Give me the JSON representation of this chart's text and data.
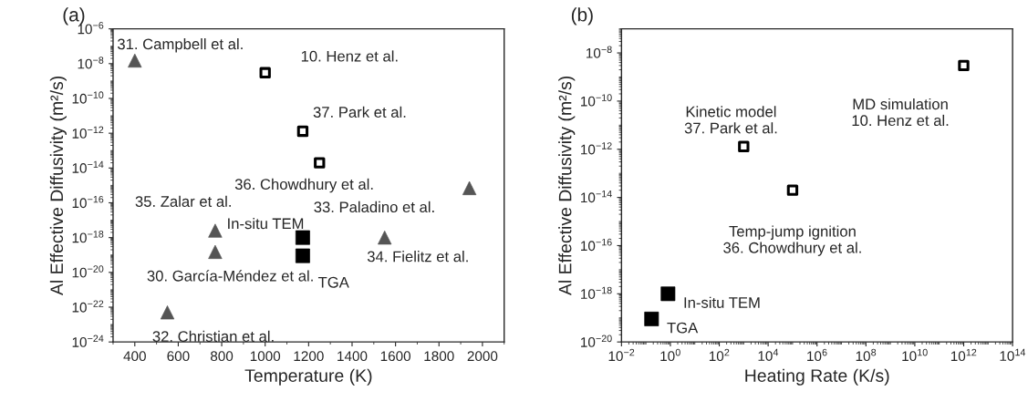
{
  "chart_data": [
    {
      "type": "scatter",
      "title": "(a)",
      "xlabel": "Temperature (K)",
      "ylabel": "Al Effective Diffusivity (m²/s)",
      "log": "y",
      "grid": false,
      "legend": false,
      "xlim": [
        300,
        2100
      ],
      "xticks": [
        400,
        600,
        800,
        1000,
        1200,
        1400,
        1600,
        1800,
        2000
      ],
      "ylim": [
        1e-24,
        1e-06
      ],
      "yticks": [
        {
          "value": 1e-24,
          "label": "10$^{−24}$"
        },
        {
          "value": 1e-22,
          "label": "10$^{−22}$"
        },
        {
          "value": 1e-20,
          "label": "10$^{−20}$"
        },
        {
          "value": 1e-18,
          "label": "10$^{−18}$"
        },
        {
          "value": 1e-16,
          "label": "10$^{−16}$"
        },
        {
          "value": 1e-14,
          "label": "10$^{−14}$"
        },
        {
          "value": 1e-12,
          "label": "10$^{−12}$"
        },
        {
          "value": 1e-10,
          "label": "10$^{−10}$"
        },
        {
          "value": 1e-08,
          "label": "10$^{−8}$"
        },
        {
          "value": 1e-06,
          "label": "10$^{−6}$"
        }
      ],
      "series": [
        {
          "color": "#555555",
          "marker": "triangle",
          "x": [
            400,
            550,
            770,
            770,
            1550,
            1940
          ],
          "values": [
            1.5e-08,
            5e-23,
            2.5e-18,
            1.5e-19,
            1e-18,
            7e-16
          ]
        },
        {
          "color": "#ffffff",
          "marker": "square",
          "x": [
            1000,
            1173,
            1250
          ],
          "values": [
            3e-09,
            1.3e-12,
            2e-14
          ]
        },
        {
          "color": "#000000",
          "marker": "square",
          "x": [
            1173,
            1173
          ],
          "values": [
            1e-18,
            9e-20
          ]
        }
      ],
      "annotations": [
        {
          "text": "31. Campbell et al.",
          "x": 400,
          "y": 1.5e-08
        },
        {
          "text": "32. Christian et al.",
          "x": 550,
          "y": 5e-23
        },
        {
          "text": "35. Zalar et al.",
          "x": 770,
          "y": 2.5e-18
        },
        {
          "text": "30. García-Méndez et al.",
          "x": 770,
          "y": 1.5e-19
        },
        {
          "text": "34. Fielitz et al.",
          "x": 1550,
          "y": 1e-18
        },
        {
          "text": "33. Paladino et al.",
          "x": 1940,
          "y": 7e-16
        },
        {
          "text": "10. Henz et al.",
          "x": 1000,
          "y": 3e-09
        },
        {
          "text": "37. Park et al.",
          "x": 1173,
          "y": 1.3e-12
        },
        {
          "text": "36. Chowdhury et al.",
          "x": 1250,
          "y": 2e-14
        },
        {
          "text": "In-situ TEM",
          "x": 1173,
          "y": 1e-18
        },
        {
          "text": "TGA",
          "x": 1173,
          "y": 9e-20
        }
      ]
    },
    {
      "type": "scatter",
      "title": "(b)",
      "xlabel": "Heating Rate (K/s)",
      "ylabel": "Al Effective Diffusivity (m²/s)",
      "log": "xy",
      "grid": false,
      "legend": false,
      "xlim": [
        0.01,
        100000000000000.0
      ],
      "xticks": [
        {
          "value": 0.01,
          "label": "10$^{−2}$"
        },
        {
          "value": 1,
          "label": "10$^{0}$"
        },
        {
          "value": 100.0,
          "label": "10$^{2}$"
        },
        {
          "value": 10000.0,
          "label": "10$^{4}$"
        },
        {
          "value": 1000000.0,
          "label": "10$^{6}$"
        },
        {
          "value": 100000000.0,
          "label": "10$^{8}$"
        },
        {
          "value": 10000000000.0,
          "label": "10$^{10}$"
        },
        {
          "value": 1000000000000.0,
          "label": "10$^{12}$"
        },
        {
          "value": 100000000000000.0,
          "label": "10$^{14}$"
        }
      ],
      "ylim": [
        1e-20,
        1e-07
      ],
      "yticks": [
        {
          "value": 1e-20,
          "label": "10$^{−20}$"
        },
        {
          "value": 1e-18,
          "label": "10$^{−18}$"
        },
        {
          "value": 1e-16,
          "label": "10$^{−16}$"
        },
        {
          "value": 1e-14,
          "label": "10$^{−14}$"
        },
        {
          "value": 1e-12,
          "label": "10$^{−12}$"
        },
        {
          "value": 1e-10,
          "label": "10$^{−10}$"
        },
        {
          "value": 1e-08,
          "label": "10$^{−8}$"
        }
      ],
      "series": [
        {
          "color": "#ffffff",
          "marker": "square",
          "x": [
            1000000000000.0,
            1000.0,
            100000.0
          ],
          "values": [
            3e-09,
            1.3e-12,
            2e-14
          ]
        },
        {
          "color": "#000000",
          "marker": "square",
          "x": [
            0.8,
            0.17
          ],
          "values": [
            1e-18,
            9e-20
          ]
        }
      ],
      "annotations": [
        {
          "text": "MD simulation\n10. Henz et al.",
          "x": 1000000000000.0,
          "y": 3e-09
        },
        {
          "text": "Kinetic model\n37. Park et al.",
          "x": 1000.0,
          "y": 1.3e-12
        },
        {
          "text": "Temp-jump ignition\n36. Chowdhury et al.",
          "x": 100000.0,
          "y": 2e-14
        },
        {
          "text": "In-situ TEM",
          "x": 0.8,
          "y": 1e-18
        },
        {
          "text": "TGA",
          "x": 0.17,
          "y": 9e-20
        }
      ]
    }
  ]
}
